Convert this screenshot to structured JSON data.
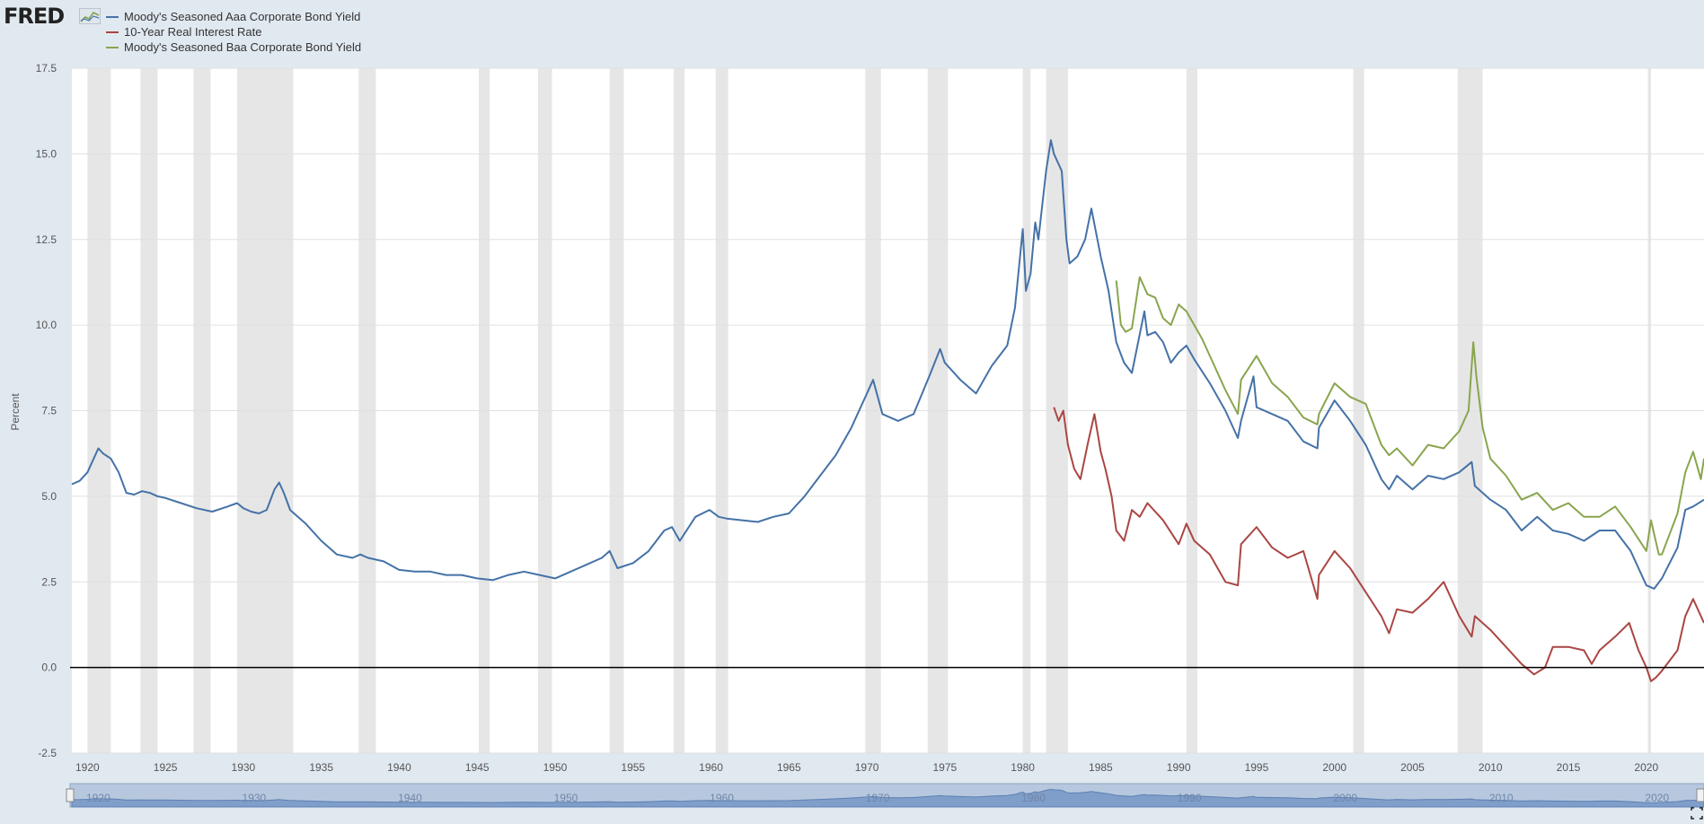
{
  "logo": {
    "text": "FRED"
  },
  "colors": {
    "aaa": "#4572a7",
    "real": "#aa4643",
    "baa": "#89a54e",
    "recession": "#e6e6e6",
    "grid": "#e0e0e0",
    "zero_line": "#000000"
  },
  "chart_data": {
    "type": "line",
    "ylabel": "Percent",
    "xlim": [
      1919,
      2023.7
    ],
    "ylim": [
      -2.5,
      17.5
    ],
    "y_ticks": [
      -2.5,
      0.0,
      2.5,
      5.0,
      7.5,
      10.0,
      12.5,
      15.0,
      17.5
    ],
    "y_tick_labels": [
      "-2.5",
      "0.0",
      "2.5",
      "5.0",
      "7.5",
      "10.0",
      "12.5",
      "15.0",
      "17.5"
    ],
    "x_ticks": [
      1920,
      1925,
      1930,
      1935,
      1940,
      1945,
      1950,
      1955,
      1960,
      1965,
      1970,
      1975,
      1980,
      1985,
      1990,
      1995,
      2000,
      2005,
      2010,
      2015,
      2020
    ],
    "grid": true,
    "legend_position": "top-left",
    "recessions": [
      [
        1920.0,
        1921.5
      ],
      [
        1923.4,
        1924.5
      ],
      [
        1926.8,
        1927.9
      ],
      [
        1929.6,
        1933.2
      ],
      [
        1937.4,
        1938.5
      ],
      [
        1945.1,
        1945.8
      ],
      [
        1948.9,
        1949.8
      ],
      [
        1953.5,
        1954.4
      ],
      [
        1957.6,
        1958.3
      ],
      [
        1960.3,
        1961.1
      ],
      [
        1969.9,
        1970.9
      ],
      [
        1973.9,
        1975.2
      ],
      [
        1980.0,
        1980.5
      ],
      [
        1981.5,
        1982.9
      ],
      [
        1990.5,
        1991.2
      ],
      [
        2001.2,
        2001.9
      ],
      [
        2007.9,
        2009.5
      ],
      [
        2020.1,
        2020.3
      ]
    ],
    "series": [
      {
        "name": "Moody's Seasoned Aaa Corporate Bond Yield",
        "x": [
          1919.0,
          1919.5,
          1920.0,
          1920.3,
          1920.7,
          1921.0,
          1921.5,
          1922.0,
          1922.5,
          1923.0,
          1923.5,
          1924.0,
          1924.5,
          1925.0,
          1926.0,
          1927.0,
          1928.0,
          1929.0,
          1929.6,
          1930.0,
          1930.5,
          1931.0,
          1931.5,
          1932.0,
          1932.3,
          1932.6,
          1933.0,
          1933.5,
          1934.0,
          1935.0,
          1936.0,
          1937.0,
          1937.5,
          1938.0,
          1939.0,
          1940.0,
          1941.0,
          1942.0,
          1943.0,
          1944.0,
          1945.0,
          1946.0,
          1947.0,
          1948.0,
          1949.0,
          1950.0,
          1951.0,
          1952.0,
          1953.0,
          1953.5,
          1954.0,
          1955.0,
          1956.0,
          1957.0,
          1957.5,
          1958.0,
          1959.0,
          1959.9,
          1960.5,
          1961.0,
          1962.0,
          1963.0,
          1964.0,
          1965.0,
          1966.0,
          1967.0,
          1968.0,
          1969.0,
          1970.0,
          1970.4,
          1971.0,
          1972.0,
          1973.0,
          1974.0,
          1974.7,
          1975.0,
          1976.0,
          1977.0,
          1978.0,
          1979.0,
          1979.5,
          1980.0,
          1980.2,
          1980.5,
          1980.8,
          1981.0,
          1981.5,
          1981.8,
          1982.0,
          1982.5,
          1982.8,
          1983.0,
          1983.5,
          1984.0,
          1984.4,
          1985.0,
          1985.5,
          1986.0,
          1986.5,
          1987.0,
          1987.8,
          1988.0,
          1988.5,
          1989.0,
          1989.5,
          1990.0,
          1990.5,
          1991.0,
          1992.0,
          1993.0,
          1993.8,
          1994.0,
          1994.8,
          1995.0,
          1996.0,
          1997.0,
          1998.0,
          1998.9,
          1999.0,
          2000.0,
          2001.0,
          2002.0,
          2003.0,
          2003.5,
          2004.0,
          2005.0,
          2006.0,
          2007.0,
          2008.0,
          2008.8,
          2009.0,
          2010.0,
          2011.0,
          2012.0,
          2013.0,
          2014.0,
          2015.0,
          2016.0,
          2017.0,
          2018.0,
          2019.0,
          2020.0,
          2020.5,
          2021.0,
          2022.0,
          2022.5,
          2023.0,
          2023.7
        ],
        "y": [
          5.35,
          5.45,
          5.7,
          6.0,
          6.4,
          6.25,
          6.1,
          5.7,
          5.1,
          5.05,
          5.15,
          5.1,
          5.0,
          4.95,
          4.8,
          4.65,
          4.55,
          4.7,
          4.8,
          4.65,
          4.55,
          4.5,
          4.6,
          5.2,
          5.4,
          5.1,
          4.6,
          4.4,
          4.2,
          3.7,
          3.3,
          3.2,
          3.3,
          3.2,
          3.1,
          2.85,
          2.8,
          2.8,
          2.7,
          2.7,
          2.6,
          2.55,
          2.7,
          2.8,
          2.7,
          2.6,
          2.8,
          3.0,
          3.2,
          3.4,
          2.9,
          3.05,
          3.4,
          4.0,
          4.1,
          3.7,
          4.4,
          4.6,
          4.4,
          4.35,
          4.3,
          4.25,
          4.4,
          4.5,
          5.0,
          5.6,
          6.2,
          7.0,
          8.0,
          8.4,
          7.4,
          7.2,
          7.4,
          8.5,
          9.3,
          8.9,
          8.4,
          8.0,
          8.8,
          9.4,
          10.5,
          12.8,
          11.0,
          11.5,
          13.0,
          12.5,
          14.5,
          15.4,
          15.0,
          14.5,
          12.5,
          11.8,
          12.0,
          12.5,
          13.4,
          12.0,
          11.0,
          9.5,
          8.9,
          8.6,
          10.4,
          9.7,
          9.8,
          9.5,
          8.9,
          9.2,
          9.4,
          9.0,
          8.3,
          7.5,
          6.7,
          7.2,
          8.5,
          7.6,
          7.4,
          7.2,
          6.6,
          6.4,
          7.0,
          7.8,
          7.2,
          6.5,
          5.5,
          5.2,
          5.6,
          5.2,
          5.6,
          5.5,
          5.7,
          6.0,
          5.3,
          4.9,
          4.6,
          4.0,
          4.4,
          4.0,
          3.9,
          3.7,
          4.0,
          4.0,
          3.4,
          2.4,
          2.3,
          2.6,
          3.5,
          4.6,
          4.7,
          4.9
        ],
        "color": "#4572a7"
      },
      {
        "name": "10-Year Real Interest Rate",
        "x": [
          1982.0,
          1982.3,
          1982.6,
          1982.9,
          1983.3,
          1983.7,
          1984.2,
          1984.6,
          1985.0,
          1985.3,
          1985.7,
          1986.0,
          1986.5,
          1987.0,
          1987.5,
          1988.0,
          1989.0,
          1990.0,
          1990.5,
          1991.0,
          1992.0,
          1993.0,
          1993.8,
          1994.0,
          1995.0,
          1996.0,
          1997.0,
          1998.0,
          1998.9,
          1999.0,
          2000.0,
          2001.0,
          2002.0,
          2003.0,
          2003.5,
          2004.0,
          2005.0,
          2006.0,
          2007.0,
          2008.0,
          2008.8,
          2009.0,
          2010.0,
          2011.0,
          2012.0,
          2012.8,
          2013.5,
          2014.0,
          2015.0,
          2016.0,
          2016.5,
          2017.0,
          2018.0,
          2018.9,
          2019.5,
          2020.0,
          2020.3,
          2020.6,
          2021.0,
          2022.0,
          2022.5,
          2023.0,
          2023.7
        ],
        "y": [
          7.6,
          7.2,
          7.5,
          6.5,
          5.8,
          5.5,
          6.6,
          7.4,
          6.3,
          5.8,
          5.0,
          4.0,
          3.7,
          4.6,
          4.4,
          4.8,
          4.3,
          3.6,
          4.2,
          3.7,
          3.3,
          2.5,
          2.4,
          3.6,
          4.1,
          3.5,
          3.2,
          3.4,
          2.0,
          2.7,
          3.4,
          2.9,
          2.2,
          1.5,
          1.0,
          1.7,
          1.6,
          2.0,
          2.5,
          1.5,
          0.9,
          1.5,
          1.1,
          0.6,
          0.1,
          -0.2,
          0.0,
          0.6,
          0.6,
          0.5,
          0.1,
          0.5,
          0.9,
          1.3,
          0.5,
          0.0,
          -0.4,
          -0.3,
          -0.1,
          0.5,
          1.5,
          2.0,
          1.3
        ],
        "color": "#aa4643"
      },
      {
        "name": "Moody's Seasoned Baa Corporate Bond Yield",
        "x": [
          1986.0,
          1986.3,
          1986.6,
          1987.0,
          1987.5,
          1988.0,
          1988.5,
          1989.0,
          1989.5,
          1990.0,
          1990.5,
          1991.0,
          1991.5,
          1992.0,
          1993.0,
          1993.8,
          1994.0,
          1995.0,
          1996.0,
          1997.0,
          1998.0,
          1998.9,
          1999.0,
          2000.0,
          2001.0,
          2002.0,
          2003.0,
          2003.5,
          2004.0,
          2005.0,
          2006.0,
          2007.0,
          2008.0,
          2008.6,
          2008.9,
          2009.1,
          2009.5,
          2010.0,
          2011.0,
          2012.0,
          2013.0,
          2014.0,
          2015.0,
          2016.0,
          2017.0,
          2018.0,
          2019.0,
          2020.0,
          2020.3,
          2020.8,
          2021.0,
          2022.0,
          2022.5,
          2023.0,
          2023.5,
          2023.7
        ],
        "y": [
          11.3,
          10.0,
          9.8,
          9.9,
          11.4,
          10.9,
          10.8,
          10.2,
          10.0,
          10.6,
          10.4,
          10.0,
          9.6,
          9.1,
          8.1,
          7.4,
          8.4,
          9.1,
          8.3,
          7.9,
          7.3,
          7.1,
          7.4,
          8.3,
          7.9,
          7.7,
          6.5,
          6.2,
          6.4,
          5.9,
          6.5,
          6.4,
          6.9,
          7.5,
          9.5,
          8.5,
          7.0,
          6.1,
          5.6,
          4.9,
          5.1,
          4.6,
          4.8,
          4.4,
          4.4,
          4.7,
          4.1,
          3.4,
          4.3,
          3.3,
          3.3,
          4.5,
          5.7,
          6.3,
          5.5,
          6.1
        ],
        "color": "#89a54e"
      }
    ]
  },
  "navigator": {
    "labels": [
      "1920",
      "1930",
      "1940",
      "1950",
      "1960",
      "1970",
      "1980",
      "1990",
      "2000",
      "2010",
      "2020"
    ]
  }
}
